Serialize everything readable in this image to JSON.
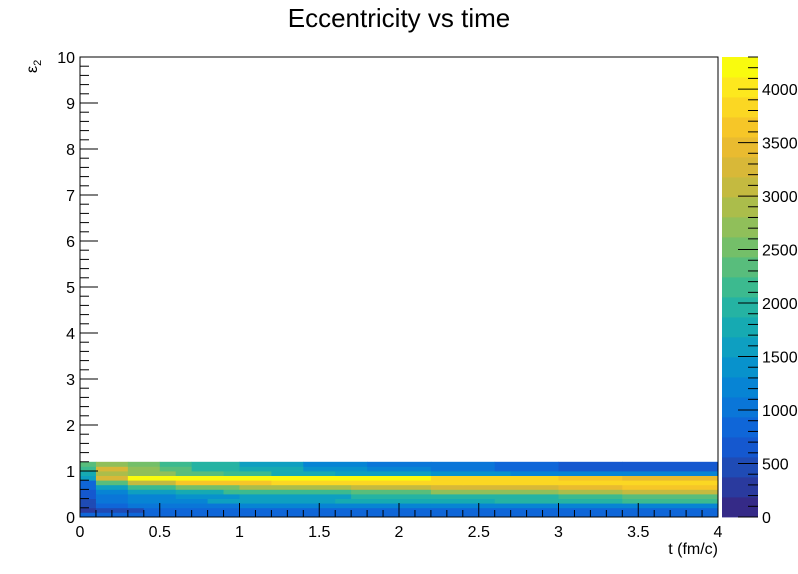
{
  "chart_data": {
    "type": "heatmap",
    "title": "Eccentricity vs time",
    "xlabel": "t (fm/c)",
    "ylabel_base": "ε",
    "ylabel_sub": "2",
    "xlim": [
      0,
      4
    ],
    "ylim": [
      0,
      10
    ],
    "x_ticks": [
      {
        "v": 0,
        "label": "0"
      },
      {
        "v": 0.5,
        "label": "0.5"
      },
      {
        "v": 1,
        "label": "1"
      },
      {
        "v": 1.5,
        "label": "1.5"
      },
      {
        "v": 2,
        "label": "2"
      },
      {
        "v": 2.5,
        "label": "2.5"
      },
      {
        "v": 3,
        "label": "3"
      },
      {
        "v": 3.5,
        "label": "3.5"
      },
      {
        "v": 4,
        "label": "4"
      }
    ],
    "y_ticks": [
      {
        "v": 0,
        "label": "0"
      },
      {
        "v": 1,
        "label": "1"
      },
      {
        "v": 2,
        "label": "2"
      },
      {
        "v": 3,
        "label": "3"
      },
      {
        "v": 4,
        "label": "4"
      },
      {
        "v": 5,
        "label": "5"
      },
      {
        "v": 6,
        "label": "6"
      },
      {
        "v": 7,
        "label": "7"
      },
      {
        "v": 8,
        "label": "8"
      },
      {
        "v": 9,
        "label": "9"
      },
      {
        "v": 10,
        "label": "10"
      }
    ],
    "colorbar": {
      "range": [
        0,
        4300
      ],
      "ticks": [
        {
          "v": 0,
          "label": "0"
        },
        {
          "v": 500,
          "label": "500"
        },
        {
          "v": 1000,
          "label": "1000"
        },
        {
          "v": 1500,
          "label": "1500"
        },
        {
          "v": 2000,
          "label": "2000"
        },
        {
          "v": 2500,
          "label": "2500"
        },
        {
          "v": 3000,
          "label": "3000"
        },
        {
          "v": 3500,
          "label": "3500"
        },
        {
          "v": 4000,
          "label": "4000"
        }
      ],
      "palette": [
        "#352a87",
        "#2a3a9e",
        "#1f4bb5",
        "#1558cf",
        "#0f66d8",
        "#0a76d8",
        "#0784d4",
        "#0892cc",
        "#0e9fc1",
        "#16aab2",
        "#25b3a3",
        "#3cba8f",
        "#58bd7c",
        "#74bf69",
        "#90bf5a",
        "#abbd4b",
        "#c4ba40",
        "#d8b838",
        "#e9bb30",
        "#f6c628",
        "#fbd723",
        "#fde81e",
        "#f9fb0e"
      ]
    },
    "cells": {
      "x_bins": 40,
      "y_edges": [
        0,
        0.1,
        0.2,
        0.3,
        0.4,
        0.5,
        0.6,
        0.7,
        0.8,
        0.9,
        1.0,
        1.1,
        1.2
      ],
      "rows": [
        {
          "y0": 0.0,
          "y1": 0.1,
          "segments": [
            [
              0,
              40,
              800
            ]
          ]
        },
        {
          "y0": 0.1,
          "y1": 0.2,
          "segments": [
            [
              0,
              1,
              300
            ],
            [
              1,
              4,
              500
            ],
            [
              4,
              40,
              900
            ]
          ]
        },
        {
          "y0": 0.2,
          "y1": 0.3,
          "segments": [
            [
              0,
              1,
              400
            ],
            [
              1,
              3,
              800
            ],
            [
              3,
              10,
              1050
            ],
            [
              10,
              22,
              1150
            ],
            [
              22,
              40,
              1250
            ]
          ]
        },
        {
          "y0": 0.3,
          "y1": 0.4,
          "segments": [
            [
              0,
              1,
              500
            ],
            [
              1,
              3,
              1050
            ],
            [
              3,
              8,
              1300
            ],
            [
              8,
              16,
              1500
            ],
            [
              16,
              26,
              1750
            ],
            [
              26,
              34,
              1950
            ],
            [
              34,
              40,
              2100
            ]
          ]
        },
        {
          "y0": 0.4,
          "y1": 0.5,
          "segments": [
            [
              0,
              1,
              600
            ],
            [
              1,
              3,
              1050
            ],
            [
              3,
              6,
              1300
            ],
            [
              6,
              10,
              1450
            ],
            [
              10,
              17,
              1650
            ],
            [
              17,
              22,
              1900
            ],
            [
              22,
              30,
              2050
            ],
            [
              30,
              34,
              2200
            ],
            [
              34,
              40,
              2400
            ]
          ]
        },
        {
          "y0": 0.5,
          "y1": 0.6,
          "segments": [
            [
              0,
              1,
              700
            ],
            [
              1,
              3,
              1200
            ],
            [
              3,
              6,
              1550
            ],
            [
              6,
              9,
              1800
            ],
            [
              9,
              17,
              2100
            ],
            [
              17,
              22,
              2400
            ],
            [
              22,
              30,
              2700
            ],
            [
              30,
              34,
              2850
            ],
            [
              34,
              40,
              3000
            ]
          ]
        },
        {
          "y0": 0.6,
          "y1": 0.7,
          "segments": [
            [
              0,
              1,
              800
            ],
            [
              1,
              3,
              1550
            ],
            [
              3,
              6,
              2150
            ],
            [
              6,
              10,
              2600
            ],
            [
              10,
              17,
              2900
            ],
            [
              17,
              22,
              3100
            ],
            [
              22,
              30,
              3350
            ],
            [
              30,
              34,
              3500
            ],
            [
              34,
              40,
              3650
            ]
          ]
        },
        {
          "y0": 0.7,
          "y1": 0.8,
          "segments": [
            [
              0,
              1,
              900
            ],
            [
              1,
              3,
              2300
            ],
            [
              3,
              6,
              3000
            ],
            [
              6,
              12,
              3600
            ],
            [
              12,
              18,
              3750
            ],
            [
              18,
              24,
              3800
            ],
            [
              24,
              30,
              3800
            ],
            [
              30,
              34,
              3800
            ],
            [
              34,
              40,
              3900
            ]
          ]
        },
        {
          "y0": 0.8,
          "y1": 0.9,
          "segments": [
            [
              0,
              1,
              1500
            ],
            [
              1,
              3,
              3300
            ],
            [
              3,
              8,
              4200
            ],
            [
              8,
              17,
              4250
            ],
            [
              17,
              22,
              4200
            ],
            [
              22,
              30,
              3900
            ],
            [
              30,
              34,
              3650
            ],
            [
              34,
              40,
              3450
            ]
          ]
        },
        {
          "y0": 0.9,
          "y1": 1.0,
          "segments": [
            [
              0,
              1,
              1750
            ],
            [
              1,
              3,
              2950
            ],
            [
              3,
              6,
              2700
            ],
            [
              6,
              9,
              2400
            ],
            [
              9,
              12,
              2100
            ],
            [
              12,
              16,
              1800
            ],
            [
              16,
              22,
              1600
            ],
            [
              22,
              27,
              1400
            ],
            [
              27,
              34,
              1250
            ],
            [
              34,
              40,
              1150
            ]
          ]
        },
        {
          "y0": 1.0,
          "y1": 1.1,
          "segments": [
            [
              0,
              1,
              2100
            ],
            [
              1,
              3,
              3200
            ],
            [
              3,
              5,
              2700
            ],
            [
              5,
              7,
              2400
            ],
            [
              7,
              10,
              2000
            ],
            [
              10,
              14,
              1700
            ],
            [
              14,
              18,
              1400
            ],
            [
              18,
              22,
              1150
            ],
            [
              22,
              26,
              1000
            ],
            [
              26,
              30,
              850
            ],
            [
              30,
              34,
              700
            ],
            [
              34,
              40,
              650
            ]
          ]
        },
        {
          "y0": 1.1,
          "y1": 1.2,
          "segments": [
            [
              0,
              1,
              2300
            ],
            [
              1,
              3,
              2800
            ],
            [
              3,
              5,
              2500
            ],
            [
              5,
              7,
              2200
            ],
            [
              7,
              10,
              1900
            ],
            [
              10,
              14,
              1600
            ],
            [
              14,
              18,
              1300
            ],
            [
              18,
              22,
              1100
            ],
            [
              22,
              26,
              950
            ],
            [
              26,
              30,
              800
            ],
            [
              30,
              34,
              650
            ],
            [
              34,
              40,
              600
            ]
          ]
        }
      ]
    }
  }
}
